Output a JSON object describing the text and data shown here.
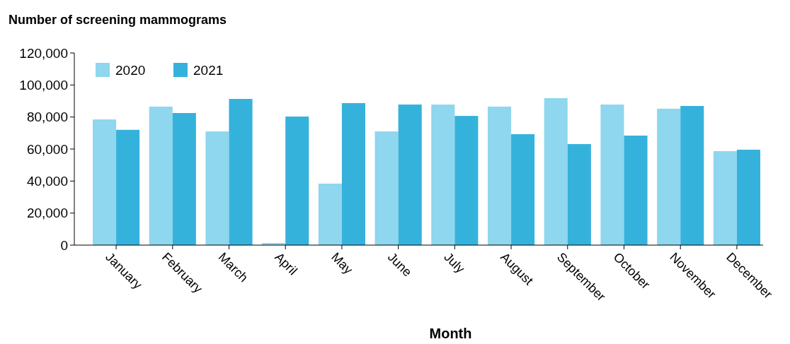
{
  "chart_data": {
    "type": "bar",
    "ylabel": "Number of screening mammograms",
    "xlabel": "Month",
    "categories": [
      "January",
      "February",
      "March",
      "April",
      "May",
      "June",
      "July",
      "August",
      "September",
      "October",
      "November",
      "December"
    ],
    "series": [
      {
        "name": "2020",
        "color": "#8fd6ef",
        "values": [
          78500,
          86500,
          71000,
          1300,
          38400,
          71000,
          87800,
          86500,
          91800,
          87800,
          85200,
          58700
        ]
      },
      {
        "name": "2021",
        "color": "#35b2dc",
        "values": [
          72000,
          82500,
          91300,
          80300,
          88700,
          87800,
          80700,
          69300,
          63100,
          68400,
          86900,
          59600
        ]
      }
    ],
    "ylim": [
      0,
      120000
    ],
    "yticks": [
      {
        "value": 0,
        "label": "0"
      },
      {
        "value": 20000,
        "label": "20,000"
      },
      {
        "value": 40000,
        "label": "40,000"
      },
      {
        "value": 60000,
        "label": "60,000"
      },
      {
        "value": 80000,
        "label": "80,000"
      },
      {
        "value": 100000,
        "label": "100,000"
      },
      {
        "value": 120000,
        "label": "120,000"
      }
    ],
    "grid": false,
    "legend": "top left"
  }
}
